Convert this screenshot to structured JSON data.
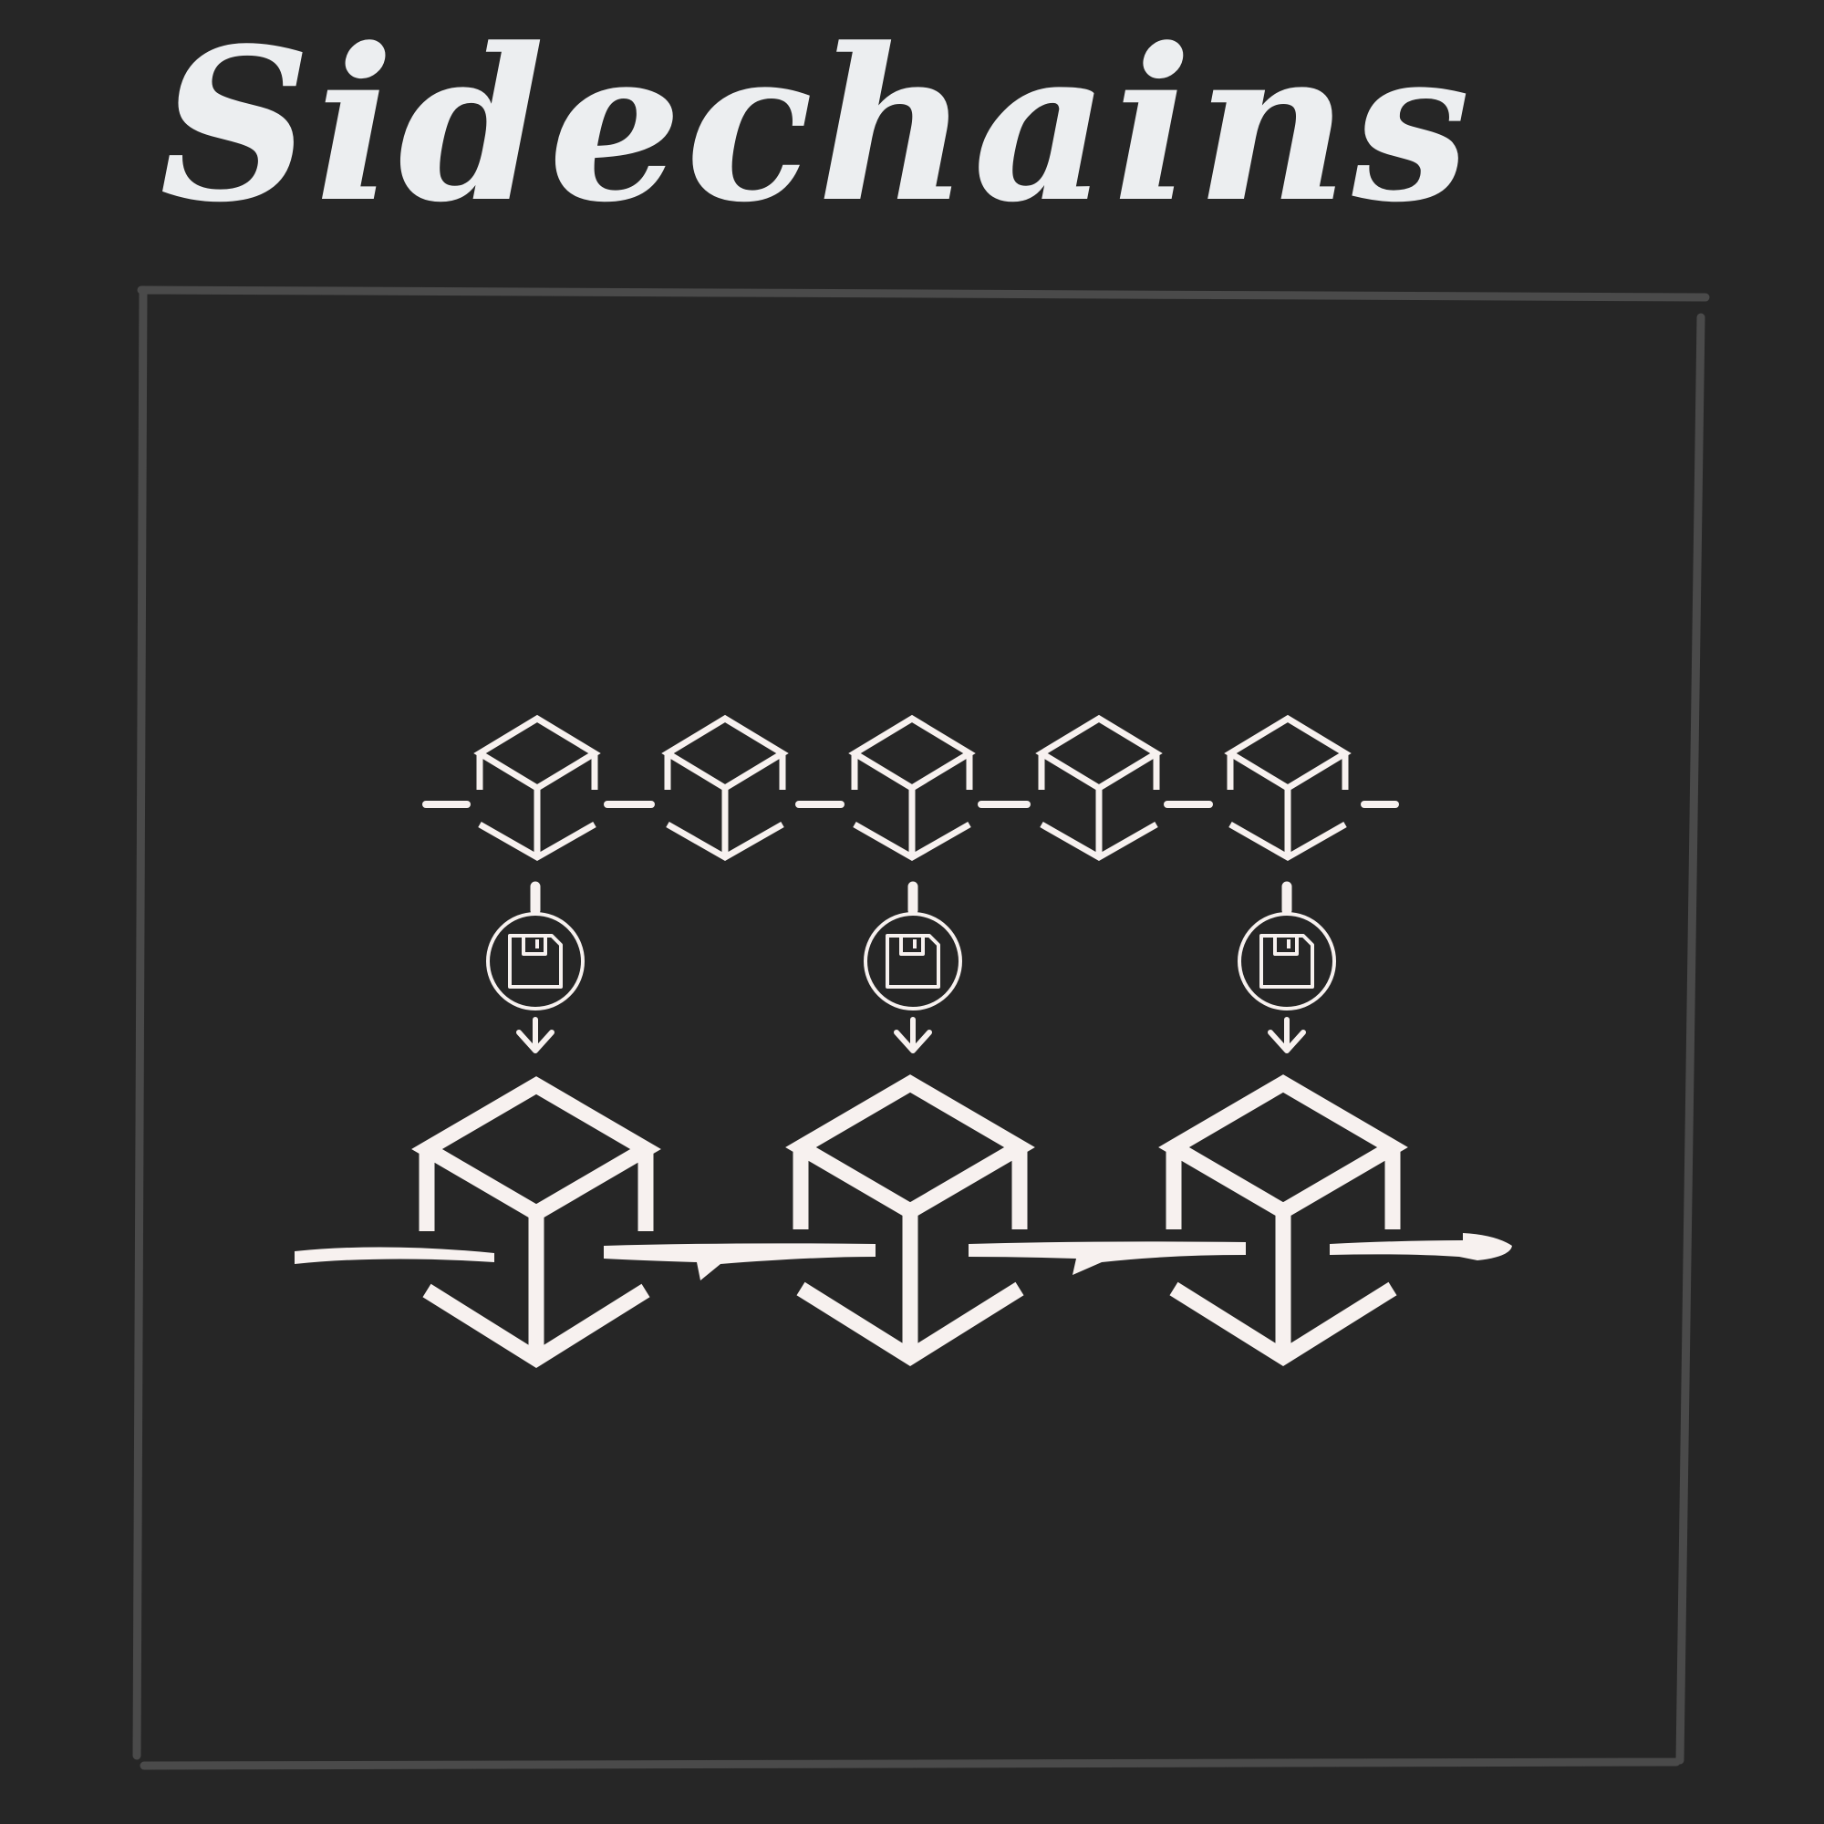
{
  "title": "Sidechains",
  "colors": {
    "background": "#262626",
    "frame": "#4a4a4a",
    "ink": "#f7f1ef",
    "title": "#eceef0"
  },
  "diagram": {
    "sidechain_block_count": 5,
    "main_chain_block_count": 3,
    "anchored_sidechain_blocks": [
      1,
      3,
      5
    ],
    "link_icon": "floppy-disk-icon"
  }
}
